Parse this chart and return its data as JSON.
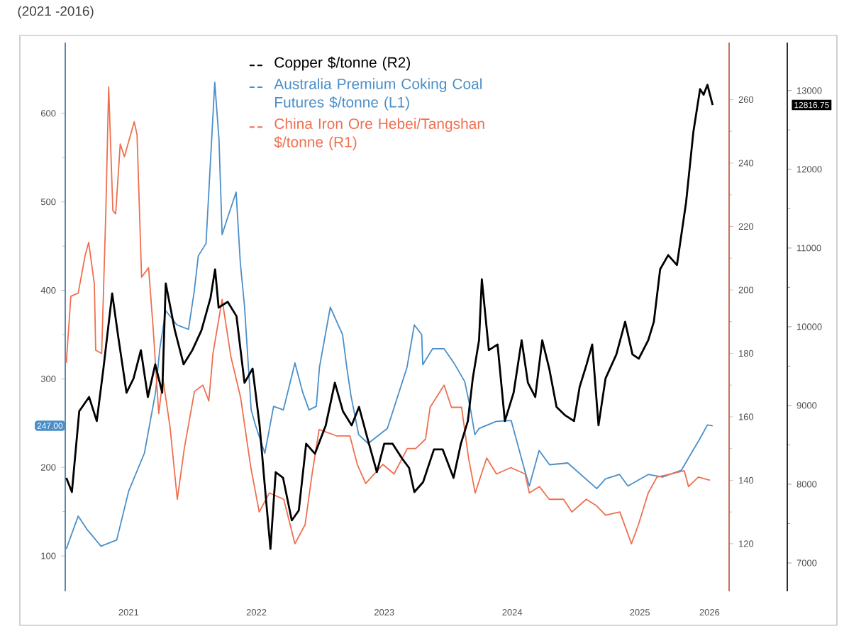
{
  "chart_data": {
    "type": "line",
    "title": "(2021 -2016)",
    "xlim": [
      "2021-01-01",
      "2026-03-13"
    ],
    "xticks": [
      {
        "value": "2021-07-01",
        "label": "2021"
      },
      {
        "value": "2022-07-01",
        "label": "2022"
      },
      {
        "value": "2023-07-01",
        "label": "2023"
      },
      {
        "value": "2024-07-01",
        "label": "2024"
      },
      {
        "value": "2025-07-01",
        "label": "2025"
      },
      {
        "value": "2026-01-16",
        "label": "2026"
      }
    ],
    "ylim": [
      60,
      680
    ],
    "yticks": [
      100,
      200,
      300,
      400,
      500,
      600
    ],
    "y2lim": [
      105,
      278
    ],
    "y2ticks": [
      120,
      140,
      160,
      180,
      200,
      220,
      240,
      260
    ],
    "y3lim": [
      6640,
      13610
    ],
    "y3ticks": [
      7000,
      8000,
      9000,
      10000,
      11000,
      12000,
      13000
    ],
    "legend": "top",
    "annotations": [
      "247.00",
      "12816.75"
    ],
    "series": [
      {
        "name": "Copper $/tonne (R2)",
        "color": "#000000",
        "axis": "y3",
        "x": [
          "2021-01-04",
          "2021-01-20",
          "2021-02-10",
          "2021-03-10",
          "2021-04-01",
          "2021-04-20",
          "2021-05-15",
          "2021-06-01",
          "2021-06-25",
          "2021-07-15",
          "2021-08-05",
          "2021-08-25",
          "2021-09-15",
          "2021-10-05",
          "2021-10-15",
          "2021-11-10",
          "2021-12-05",
          "2021-12-30",
          "2022-01-25",
          "2022-02-20",
          "2022-03-05",
          "2022-03-15",
          "2022-04-10",
          "2022-05-05",
          "2022-05-28",
          "2022-06-20",
          "2022-07-10",
          "2022-07-25",
          "2022-08-10",
          "2022-08-25",
          "2022-09-15",
          "2022-10-10",
          "2022-10-30",
          "2022-11-20",
          "2022-12-15",
          "2023-01-15",
          "2023-02-10",
          "2023-03-05",
          "2023-03-30",
          "2023-04-20",
          "2023-05-15",
          "2023-06-10",
          "2023-07-01",
          "2023-07-25",
          "2023-08-20",
          "2023-09-10",
          "2023-09-25",
          "2023-10-20",
          "2023-11-20",
          "2023-12-15",
          "2024-01-15",
          "2024-02-05",
          "2024-02-25",
          "2024-03-10",
          "2024-03-28",
          "2024-04-05",
          "2024-04-25",
          "2024-05-20",
          "2024-06-10",
          "2024-07-05",
          "2024-07-28",
          "2024-08-15",
          "2024-09-05",
          "2024-09-25",
          "2024-10-15",
          "2024-11-05",
          "2024-11-30",
          "2024-12-25",
          "2025-01-10",
          "2025-01-30",
          "2025-02-15",
          "2025-03-05",
          "2025-03-25",
          "2025-04-25",
          "2025-05-20",
          "2025-06-10",
          "2025-06-28",
          "2025-07-25",
          "2025-08-10",
          "2025-08-28",
          "2025-09-20",
          "2025-10-15",
          "2025-11-10",
          "2025-12-01",
          "2025-12-20",
          "2025-12-30",
          "2026-01-10",
          "2026-01-25"
        ],
        "values": [
          8081,
          7901,
          8928,
          9108,
          8802,
          9469,
          10424,
          9883,
          9162,
          9343,
          9703,
          9108,
          9523,
          9162,
          10550,
          9955,
          9523,
          9703,
          9955,
          10370,
          10730,
          10244,
          10316,
          10135,
          9289,
          9469,
          8748,
          7973,
          7180,
          8153,
          8081,
          7541,
          7667,
          8514,
          8388,
          8748,
          9289,
          8928,
          8748,
          8982,
          8568,
          8153,
          8514,
          8514,
          8333,
          8207,
          7901,
          8027,
          8442,
          8442,
          8081,
          8514,
          8802,
          9343,
          9829,
          10604,
          9703,
          9775,
          8802,
          9162,
          9829,
          9289,
          9108,
          9829,
          9469,
          8982,
          8874,
          8802,
          9234,
          9523,
          9775,
          8748,
          9343,
          9649,
          10063,
          9649,
          9595,
          9829,
          10063,
          10730,
          10910,
          10784,
          11577,
          12478,
          13019,
          12947,
          13073,
          12817
        ]
      },
      {
        "name": "Australia Premium Coking Coal Futures $/tonne (L1)",
        "color": "#4a8fc9",
        "x": [
          "2021-01-04",
          "2021-02-07",
          "2021-03-04",
          "2021-04-13",
          "2021-05-28",
          "2021-07-01",
          "2021-08-15",
          "2021-09-16",
          "2021-09-28",
          "2021-10-15",
          "2021-11-16",
          "2021-12-19",
          "2022-01-04",
          "2022-01-16",
          "2022-02-07",
          "2022-03-04",
          "2022-03-16",
          "2022-03-25",
          "2022-04-07",
          "2022-05-04",
          "2022-05-16",
          "2022-05-28",
          "2022-06-16",
          "2022-06-28",
          "2022-07-25",
          "2022-08-19",
          "2022-09-16",
          "2022-10-19",
          "2022-11-10",
          "2022-11-28",
          "2022-12-19",
          "2022-12-28",
          "2023-01-28",
          "2023-03-04",
          "2023-03-16",
          "2023-03-28",
          "2023-04-19",
          "2023-05-16",
          "2023-07-10",
          "2023-09-04",
          "2023-09-25",
          "2023-10-16",
          "2023-10-19",
          "2023-11-16",
          "2023-12-19",
          "2024-01-16",
          "2024-02-16",
          "2024-03-04",
          "2024-03-16",
          "2024-03-28",
          "2024-05-16",
          "2024-06-28",
          "2024-08-07",
          "2024-08-19",
          "2024-09-16",
          "2024-10-16",
          "2024-12-07",
          "2025-02-28",
          "2025-03-25",
          "2025-05-04",
          "2025-05-28",
          "2025-07-25",
          "2025-09-04",
          "2025-10-28",
          "2025-11-25",
          "2025-12-19",
          "2026-01-10",
          "2026-01-25"
        ],
        "values": [
          108,
          145,
          130,
          111,
          118,
          173,
          216,
          285,
          334,
          377,
          361,
          356,
          398,
          439,
          453,
          635,
          571,
          463,
          479,
          511,
          431,
          382,
          265,
          248,
          216,
          269,
          265,
          318,
          285,
          265,
          269,
          313,
          381,
          350,
          313,
          281,
          237,
          227,
          244,
          313,
          361,
          350,
          316,
          334,
          334,
          318,
          297,
          265,
          237,
          244,
          252,
          253,
          195,
          179,
          219,
          203,
          205,
          176,
          187,
          192,
          179,
          192,
          189,
          197,
          216,
          232,
          248,
          247
        ]
      },
      {
        "name": "China Iron Ore Hebei/Tangshan $/tonne (R1)",
        "color": "#ef6f4f",
        "axis": "y2",
        "x": [
          "2021-01-04",
          "2021-01-17",
          "2021-02-07",
          "2021-02-27",
          "2021-03-09",
          "2021-03-25",
          "2021-03-29",
          "2021-04-15",
          "2021-04-27",
          "2021-05-05",
          "2021-05-17",
          "2021-05-25",
          "2021-06-07",
          "2021-06-19",
          "2021-07-17",
          "2021-07-25",
          "2021-08-07",
          "2021-08-27",
          "2021-09-09",
          "2021-09-25",
          "2021-10-07",
          "2021-10-27",
          "2021-11-17",
          "2021-12-07",
          "2022-01-05",
          "2022-01-29",
          "2022-02-15",
          "2022-02-27",
          "2022-03-25",
          "2022-04-19",
          "2022-05-17",
          "2022-06-15",
          "2022-07-09",
          "2022-08-07",
          "2022-09-17",
          "2022-10-19",
          "2022-11-17",
          "2022-12-07",
          "2022-12-27",
          "2023-02-15",
          "2023-03-25",
          "2023-04-15",
          "2023-05-09",
          "2023-06-27",
          "2023-07-29",
          "2023-09-05",
          "2023-09-29",
          "2023-10-27",
          "2023-11-09",
          "2023-12-19",
          "2024-01-09",
          "2024-02-07",
          "2024-02-27",
          "2024-03-17",
          "2024-04-19",
          "2024-05-17",
          "2024-06-27",
          "2024-08-07",
          "2024-08-19",
          "2024-09-17",
          "2024-10-15",
          "2024-11-25",
          "2024-12-19",
          "2025-01-29",
          "2025-02-27",
          "2025-03-25",
          "2025-05-05",
          "2025-06-07",
          "2025-06-27",
          "2025-07-25",
          "2025-08-19",
          "2025-09-29",
          "2025-11-05",
          "2025-11-17",
          "2025-12-15",
          "2026-01-17"
        ],
        "values": [
          177,
          198,
          199,
          211,
          215,
          202,
          181,
          180,
          225,
          264,
          225,
          224,
          246,
          242,
          253,
          249,
          204,
          207,
          188,
          161,
          172,
          157,
          134,
          150,
          168,
          170,
          165,
          180,
          197,
          179,
          166,
          144,
          130,
          136,
          134,
          120,
          126,
          142,
          156,
          154,
          154,
          145,
          139,
          145,
          142,
          150,
          150,
          153,
          163,
          170,
          163,
          163,
          147,
          136,
          147,
          142,
          144,
          142,
          136,
          138,
          134,
          134,
          130,
          134,
          132,
          129,
          130,
          120,
          126,
          136,
          141,
          142,
          143,
          138,
          141,
          140
        ]
      }
    ]
  }
}
